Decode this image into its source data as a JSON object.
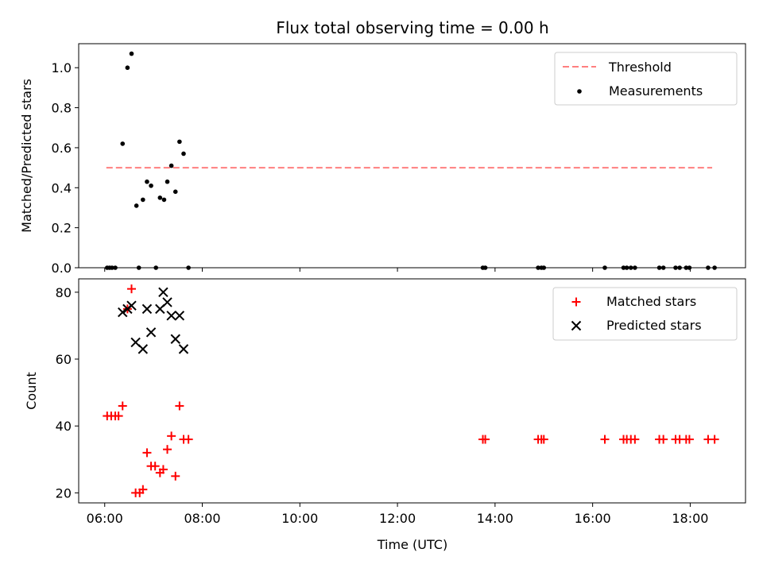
{
  "chart_data": [
    {
      "type": "scatter",
      "title": "Flux total observing time = 0.00 h",
      "xlabel": "",
      "ylabel": "Matched/Predicted stars",
      "ylim": [
        0,
        1.12
      ],
      "yticks": [
        {
          "value": 0.0,
          "label": "0.0"
        },
        {
          "value": 0.2,
          "label": "0.2"
        },
        {
          "value": 0.4,
          "label": "0.4"
        },
        {
          "value": 0.6,
          "label": "0.6"
        },
        {
          "value": 0.8,
          "label": "0.8"
        },
        {
          "value": 1.0,
          "label": "1.0"
        }
      ],
      "legend_position": "top-right",
      "threshold": {
        "name": "Threshold",
        "value": 0.5,
        "x_start": "06:02",
        "x_end": "18:27",
        "color": "#ff7f7f"
      },
      "series": [
        {
          "name": "Measurements",
          "marker": "dot",
          "color": "#000000",
          "points": [
            {
              "x": "06:03",
              "y": 0
            },
            {
              "x": "06:06",
              "y": 0
            },
            {
              "x": "06:09",
              "y": 0
            },
            {
              "x": "06:13",
              "y": 0
            },
            {
              "x": "06:22",
              "y": 0.62
            },
            {
              "x": "06:28",
              "y": 1.0
            },
            {
              "x": "06:33",
              "y": 1.07
            },
            {
              "x": "06:39",
              "y": 0.31
            },
            {
              "x": "06:42",
              "y": 0
            },
            {
              "x": "06:47",
              "y": 0.34
            },
            {
              "x": "06:52",
              "y": 0.43
            },
            {
              "x": "06:57",
              "y": 0.41
            },
            {
              "x": "07:03",
              "y": 0
            },
            {
              "x": "07:08",
              "y": 0.35
            },
            {
              "x": "07:13",
              "y": 0.34
            },
            {
              "x": "07:17",
              "y": 0.43
            },
            {
              "x": "07:22",
              "y": 0.51
            },
            {
              "x": "07:27",
              "y": 0.38
            },
            {
              "x": "07:32",
              "y": 0.63
            },
            {
              "x": "07:37",
              "y": 0.57
            },
            {
              "x": "07:43",
              "y": 0
            },
            {
              "x": "13:45",
              "y": 0
            },
            {
              "x": "13:48",
              "y": 0
            },
            {
              "x": "14:53",
              "y": 0
            },
            {
              "x": "14:57",
              "y": 0
            },
            {
              "x": "15:00",
              "y": 0
            },
            {
              "x": "16:15",
              "y": 0
            },
            {
              "x": "16:38",
              "y": 0
            },
            {
              "x": "16:42",
              "y": 0
            },
            {
              "x": "16:47",
              "y": 0
            },
            {
              "x": "16:52",
              "y": 0
            },
            {
              "x": "17:22",
              "y": 0
            },
            {
              "x": "17:27",
              "y": 0
            },
            {
              "x": "17:42",
              "y": 0
            },
            {
              "x": "17:47",
              "y": 0
            },
            {
              "x": "17:55",
              "y": 0
            },
            {
              "x": "17:59",
              "y": 0
            },
            {
              "x": "18:22",
              "y": 0
            },
            {
              "x": "18:30",
              "y": 0
            }
          ]
        }
      ]
    },
    {
      "type": "scatter",
      "title": "",
      "xlabel": "Time (UTC)",
      "ylabel": "Count",
      "xlim": [
        "05:28",
        "19:08"
      ],
      "ylim": [
        17,
        84
      ],
      "xticks": [
        {
          "value": "06:00",
          "label": "06:00"
        },
        {
          "value": "08:00",
          "label": "08:00"
        },
        {
          "value": "10:00",
          "label": "10:00"
        },
        {
          "value": "12:00",
          "label": "12:00"
        },
        {
          "value": "14:00",
          "label": "14:00"
        },
        {
          "value": "16:00",
          "label": "16:00"
        },
        {
          "value": "18:00",
          "label": "18:00"
        }
      ],
      "yticks": [
        {
          "value": 20,
          "label": "20"
        },
        {
          "value": 40,
          "label": "40"
        },
        {
          "value": 60,
          "label": "60"
        },
        {
          "value": 80,
          "label": "80"
        }
      ],
      "legend_position": "top-right",
      "series": [
        {
          "name": "Matched stars",
          "marker": "plus",
          "color": "#ff0000",
          "points": [
            {
              "x": "06:03",
              "y": 43
            },
            {
              "x": "06:08",
              "y": 43
            },
            {
              "x": "06:13",
              "y": 43
            },
            {
              "x": "06:17",
              "y": 43
            },
            {
              "x": "06:22",
              "y": 46
            },
            {
              "x": "06:28",
              "y": 75
            },
            {
              "x": "06:33",
              "y": 81
            },
            {
              "x": "06:38",
              "y": 20
            },
            {
              "x": "06:43",
              "y": 20
            },
            {
              "x": "06:47",
              "y": 21
            },
            {
              "x": "06:52",
              "y": 32
            },
            {
              "x": "06:57",
              "y": 28
            },
            {
              "x": "07:02",
              "y": 28
            },
            {
              "x": "07:08",
              "y": 26
            },
            {
              "x": "07:12",
              "y": 27
            },
            {
              "x": "07:17",
              "y": 33
            },
            {
              "x": "07:22",
              "y": 37
            },
            {
              "x": "07:27",
              "y": 25
            },
            {
              "x": "07:32",
              "y": 46
            },
            {
              "x": "07:37",
              "y": 36
            },
            {
              "x": "07:43",
              "y": 36
            },
            {
              "x": "13:45",
              "y": 36
            },
            {
              "x": "13:48",
              "y": 36
            },
            {
              "x": "14:53",
              "y": 36
            },
            {
              "x": "14:57",
              "y": 36
            },
            {
              "x": "15:00",
              "y": 36
            },
            {
              "x": "16:15",
              "y": 36
            },
            {
              "x": "16:38",
              "y": 36
            },
            {
              "x": "16:42",
              "y": 36
            },
            {
              "x": "16:47",
              "y": 36
            },
            {
              "x": "16:52",
              "y": 36
            },
            {
              "x": "17:22",
              "y": 36
            },
            {
              "x": "17:27",
              "y": 36
            },
            {
              "x": "17:42",
              "y": 36
            },
            {
              "x": "17:47",
              "y": 36
            },
            {
              "x": "17:55",
              "y": 36
            },
            {
              "x": "17:59",
              "y": 36
            },
            {
              "x": "18:22",
              "y": 36
            },
            {
              "x": "18:30",
              "y": 36
            }
          ]
        },
        {
          "name": "Predicted stars",
          "marker": "x",
          "color": "#000000",
          "points": [
            {
              "x": "06:22",
              "y": 74
            },
            {
              "x": "06:28",
              "y": 75
            },
            {
              "x": "06:33",
              "y": 76
            },
            {
              "x": "06:38",
              "y": 65
            },
            {
              "x": "06:47",
              "y": 63
            },
            {
              "x": "06:52",
              "y": 75
            },
            {
              "x": "06:57",
              "y": 68
            },
            {
              "x": "07:08",
              "y": 75
            },
            {
              "x": "07:12",
              "y": 80
            },
            {
              "x": "07:17",
              "y": 77
            },
            {
              "x": "07:22",
              "y": 73
            },
            {
              "x": "07:27",
              "y": 66
            },
            {
              "x": "07:32",
              "y": 73
            },
            {
              "x": "07:37",
              "y": 63
            }
          ]
        }
      ]
    }
  ]
}
